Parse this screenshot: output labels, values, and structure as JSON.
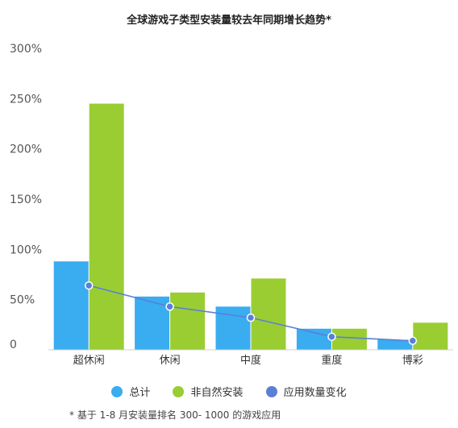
{
  "chart_data": {
    "type": "bar",
    "title": "全球游戏子类型安装量较去年同期增长趋势*",
    "categories": [
      "超休闲",
      "休闲",
      "中度",
      "重度",
      "博彩"
    ],
    "y_ticks": [
      "0",
      "50%",
      "100%",
      "150%",
      "200%",
      "250%",
      "300%"
    ],
    "ylim": [
      0,
      300
    ],
    "series": [
      {
        "name": "总计",
        "type": "bar",
        "color": "#3aacf0",
        "values": [
          88,
          53,
          43,
          21,
          10
        ]
      },
      {
        "name": "非自然安装",
        "type": "bar",
        "color": "#9acd32",
        "values": [
          245,
          57,
          71,
          21,
          27
        ]
      },
      {
        "name": "应用数量变化",
        "type": "line",
        "color": "#5b7fd6",
        "values": [
          64,
          43,
          32,
          13,
          9
        ]
      }
    ],
    "footnote": "* 基于 1-8 月安装量排名 300- 1000 的游戏应用",
    "grid": false,
    "legend_position": "bottom"
  }
}
